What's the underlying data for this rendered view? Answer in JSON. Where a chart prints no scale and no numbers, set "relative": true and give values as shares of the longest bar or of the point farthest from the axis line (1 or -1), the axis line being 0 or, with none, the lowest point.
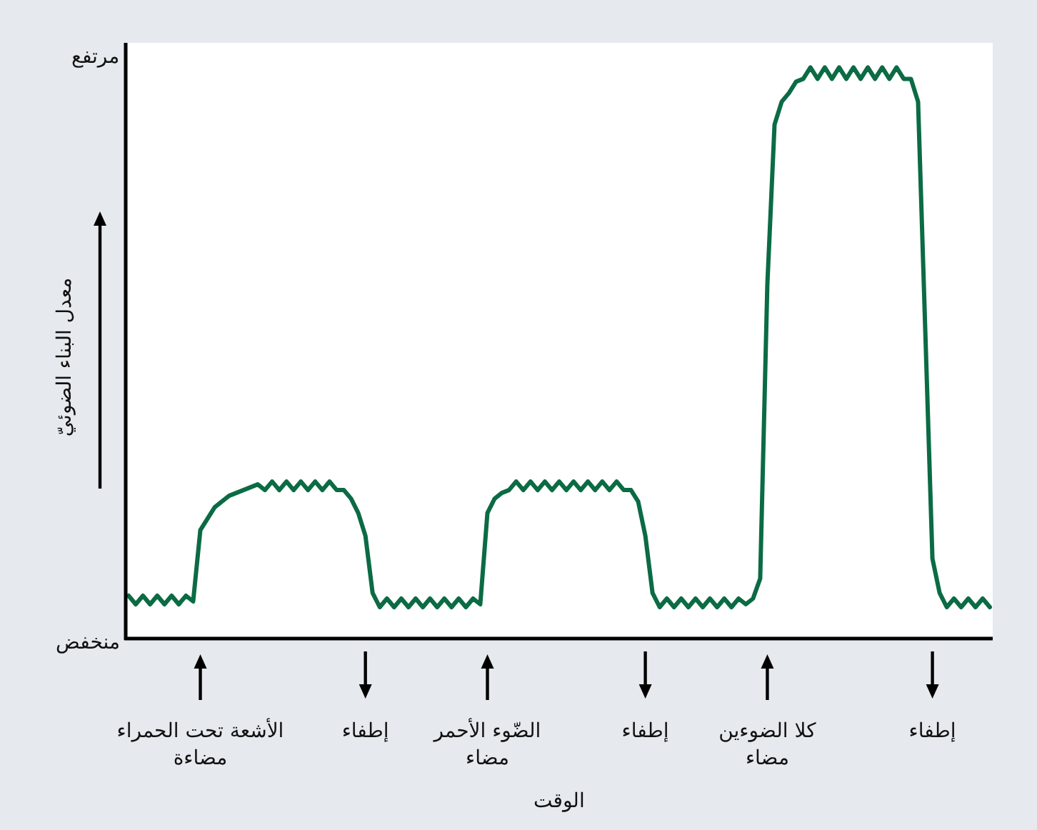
{
  "chart_data": {
    "type": "line",
    "relative": true,
    "xlabel": "الوقت",
    "ylabel": "معدل البناء الضوئيّ",
    "annotations": [
      "مرتفع",
      "منخفض"
    ],
    "categories": [
      null,
      null,
      null,
      null,
      null,
      null,
      null,
      null,
      null,
      null,
      "الأشعة تحت الحمراء مضاءة",
      null,
      null,
      null,
      null,
      null,
      null,
      null,
      null,
      null,
      null,
      null,
      null,
      null,
      null,
      null,
      null,
      null,
      null,
      null,
      null,
      null,
      null,
      "إطفاء",
      null,
      null,
      null,
      null,
      null,
      null,
      null,
      null,
      null,
      null,
      null,
      null,
      null,
      null,
      null,
      null,
      "الضّوء الأحمر مضاء",
      null,
      null,
      null,
      null,
      null,
      null,
      null,
      null,
      null,
      null,
      null,
      null,
      null,
      null,
      null,
      null,
      null,
      null,
      null,
      null,
      null,
      "إطفاء",
      null,
      null,
      null,
      null,
      null,
      null,
      null,
      null,
      null,
      null,
      null,
      null,
      null,
      null,
      null,
      null,
      "كلا الضوءين مضاء",
      null,
      null,
      null,
      null,
      null,
      null,
      null,
      null,
      null,
      null,
      null,
      null,
      null,
      null,
      null,
      null,
      null,
      null,
      null,
      null,
      null,
      null,
      "إطفاء",
      null,
      null,
      null,
      null,
      null,
      null,
      null,
      null
    ],
    "series": [
      {
        "color": "#0b6b44",
        "values": [
          0.075,
          0.06,
          0.075,
          0.06,
          0.075,
          0.06,
          0.075,
          0.06,
          0.075,
          0.065,
          0.19,
          0.21,
          0.23,
          0.24,
          0.25,
          0.255,
          0.26,
          0.265,
          0.27,
          0.26,
          0.275,
          0.26,
          0.275,
          0.26,
          0.275,
          0.26,
          0.275,
          0.26,
          0.275,
          0.26,
          0.26,
          0.245,
          0.22,
          0.18,
          0.08,
          0.055,
          0.07,
          0.055,
          0.07,
          0.055,
          0.07,
          0.055,
          0.07,
          0.055,
          0.07,
          0.055,
          0.07,
          0.055,
          0.07,
          0.06,
          0.22,
          0.245,
          0.255,
          0.26,
          0.275,
          0.26,
          0.275,
          0.26,
          0.275,
          0.26,
          0.275,
          0.26,
          0.275,
          0.26,
          0.275,
          0.26,
          0.275,
          0.26,
          0.275,
          0.26,
          0.26,
          0.24,
          0.18,
          0.08,
          0.055,
          0.07,
          0.055,
          0.07,
          0.055,
          0.07,
          0.055,
          0.07,
          0.055,
          0.07,
          0.055,
          0.07,
          0.06,
          0.07,
          0.105,
          0.62,
          0.9,
          0.94,
          0.955,
          0.975,
          0.98,
          1,
          0.98,
          1,
          0.98,
          1,
          0.98,
          1,
          0.98,
          1,
          0.98,
          1,
          0.98,
          1,
          0.98,
          0.98,
          0.94,
          0.54,
          0.14,
          0.08,
          0.055,
          0.07,
          0.055,
          0.07,
          0.055,
          0.07,
          0.055
        ]
      }
    ],
    "marker": "none",
    "line_style": "solid"
  }
}
